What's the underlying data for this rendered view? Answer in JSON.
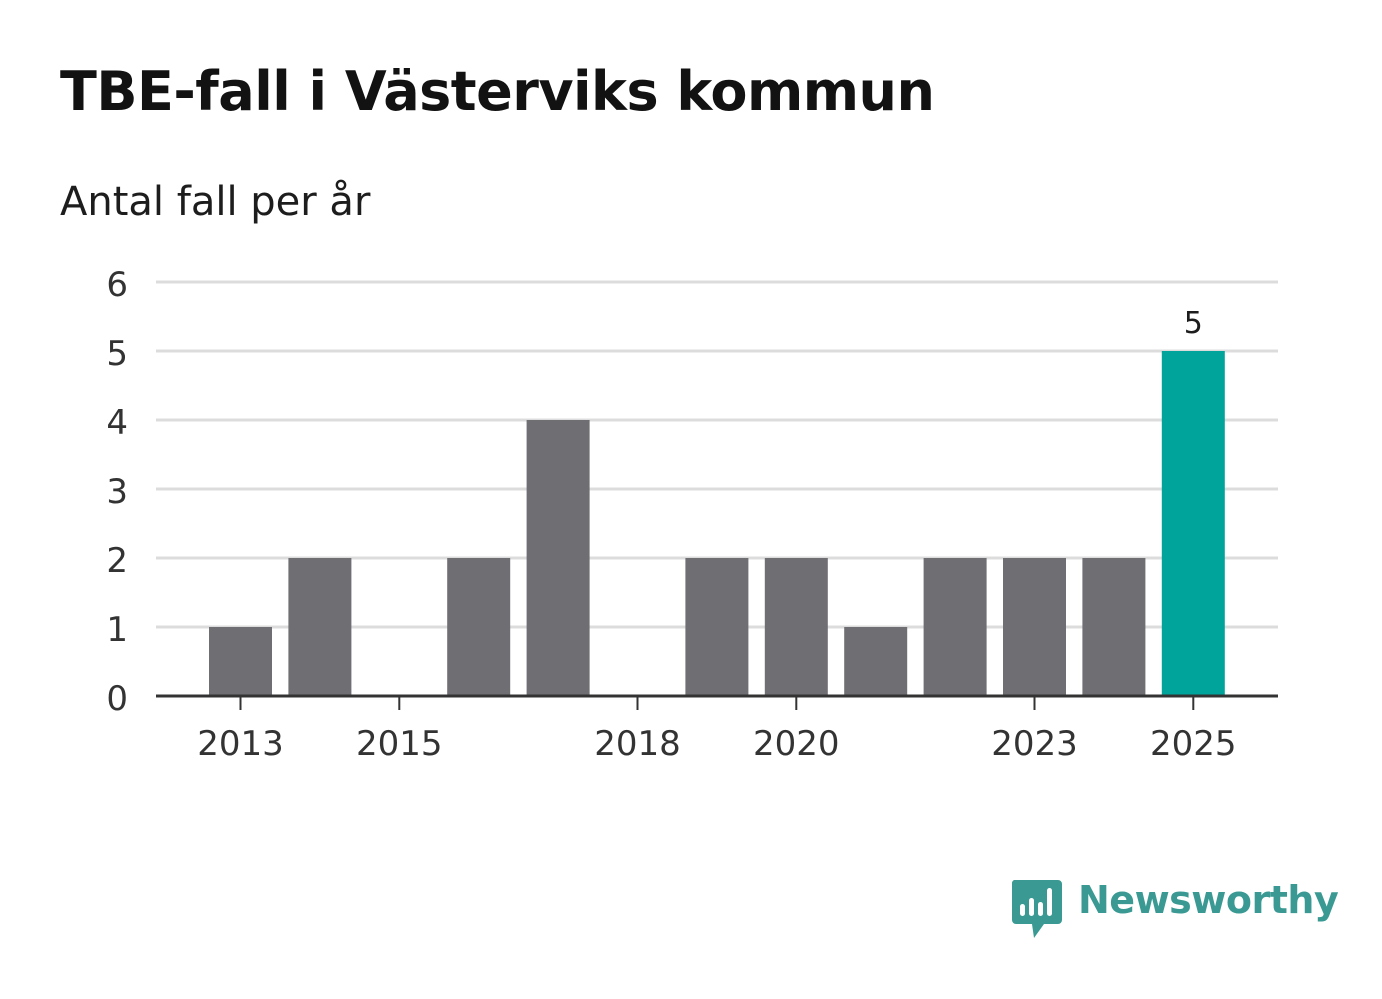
{
  "header": {
    "title": "TBE-fall i Västerviks kommun",
    "subtitle": "Antal fall per år"
  },
  "brand": {
    "name": "Newsworthy",
    "icon": "newsworthy-logo-icon",
    "color": "#3a9a93"
  },
  "colors": {
    "bar": "#6f6e73",
    "highlight": "#00a49a",
    "grid": "#dcdcdc",
    "axis": "#333333",
    "text": "#333333"
  },
  "chart_data": {
    "type": "bar",
    "title": "TBE-fall i Västerviks kommun",
    "subtitle": "Antal fall per år",
    "xlabel": "",
    "ylabel": "",
    "categories": [
      2013,
      2014,
      2015,
      2016,
      2017,
      2018,
      2019,
      2020,
      2021,
      2022,
      2023,
      2024,
      2025
    ],
    "values": [
      1,
      2,
      0,
      2,
      4,
      0,
      2,
      2,
      1,
      2,
      2,
      2,
      5
    ],
    "highlight_index": 12,
    "data_labels": [
      {
        "category": 2025,
        "text": "5"
      }
    ],
    "x_tick_labels": [
      "2013",
      "2015",
      "2018",
      "2020",
      "2023",
      "2025"
    ],
    "y_ticks": [
      0,
      1,
      2,
      3,
      4,
      5,
      6
    ],
    "ylim": [
      0,
      6
    ],
    "grid": true,
    "legend": "none"
  }
}
